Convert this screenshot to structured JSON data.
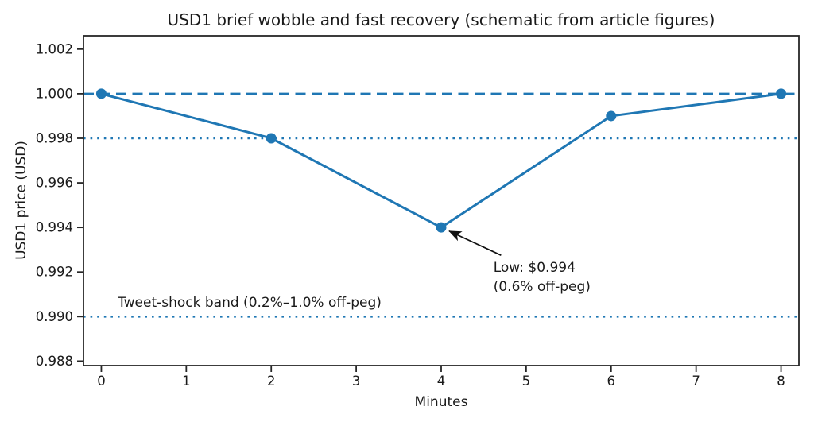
{
  "chart_data": {
    "type": "line",
    "title": "USD1 brief wobble and fast recovery (schematic from article figures)",
    "xlabel": "Minutes",
    "ylabel": "USD1 price (USD)",
    "series": [
      {
        "name": "USD1 price",
        "x": [
          0,
          2,
          4,
          6,
          8
        ],
        "y": [
          1.0,
          0.998,
          0.994,
          0.999,
          1.0
        ]
      }
    ],
    "line_color": "#1f77b4",
    "marker": "circle",
    "grid": false,
    "legend_position": "none",
    "xlim": [
      -0.21,
      8.21
    ],
    "ylim": [
      0.9878,
      1.0026
    ],
    "xticks": [
      0,
      1,
      2,
      3,
      4,
      5,
      6,
      7,
      8
    ],
    "xtick_labels": [
      "0",
      "1",
      "2",
      "3",
      "4",
      "5",
      "6",
      "7",
      "8"
    ],
    "yticks": [
      0.988,
      0.99,
      0.992,
      0.994,
      0.996,
      0.998,
      1.0,
      1.002
    ],
    "ytick_labels": [
      "0.988",
      "0.990",
      "0.992",
      "0.994",
      "0.996",
      "0.998",
      "1.000",
      "1.002"
    ],
    "reference_lines": [
      {
        "y": 1.0,
        "style": "dashed",
        "color": "#1f77b4"
      },
      {
        "y": 0.998,
        "style": "dotted",
        "color": "#1f77b4"
      },
      {
        "y": 0.99,
        "style": "dotted",
        "color": "#1f77b4"
      }
    ],
    "annotations": {
      "low": {
        "text": "Low: $0.994\n(0.6% off-peg)",
        "xy": [
          4,
          0.994
        ],
        "xytext": [
          4.615,
          0.99261
        ],
        "arrow_tail": [
          4.705,
          0.99275
        ],
        "arrow_color": "#111111"
      },
      "band": {
        "text": "Tweet-shock band (0.2%–1.0% off-peg)",
        "x": 0.193,
        "y": 0.99104
      }
    },
    "axis_color": "#262626"
  }
}
